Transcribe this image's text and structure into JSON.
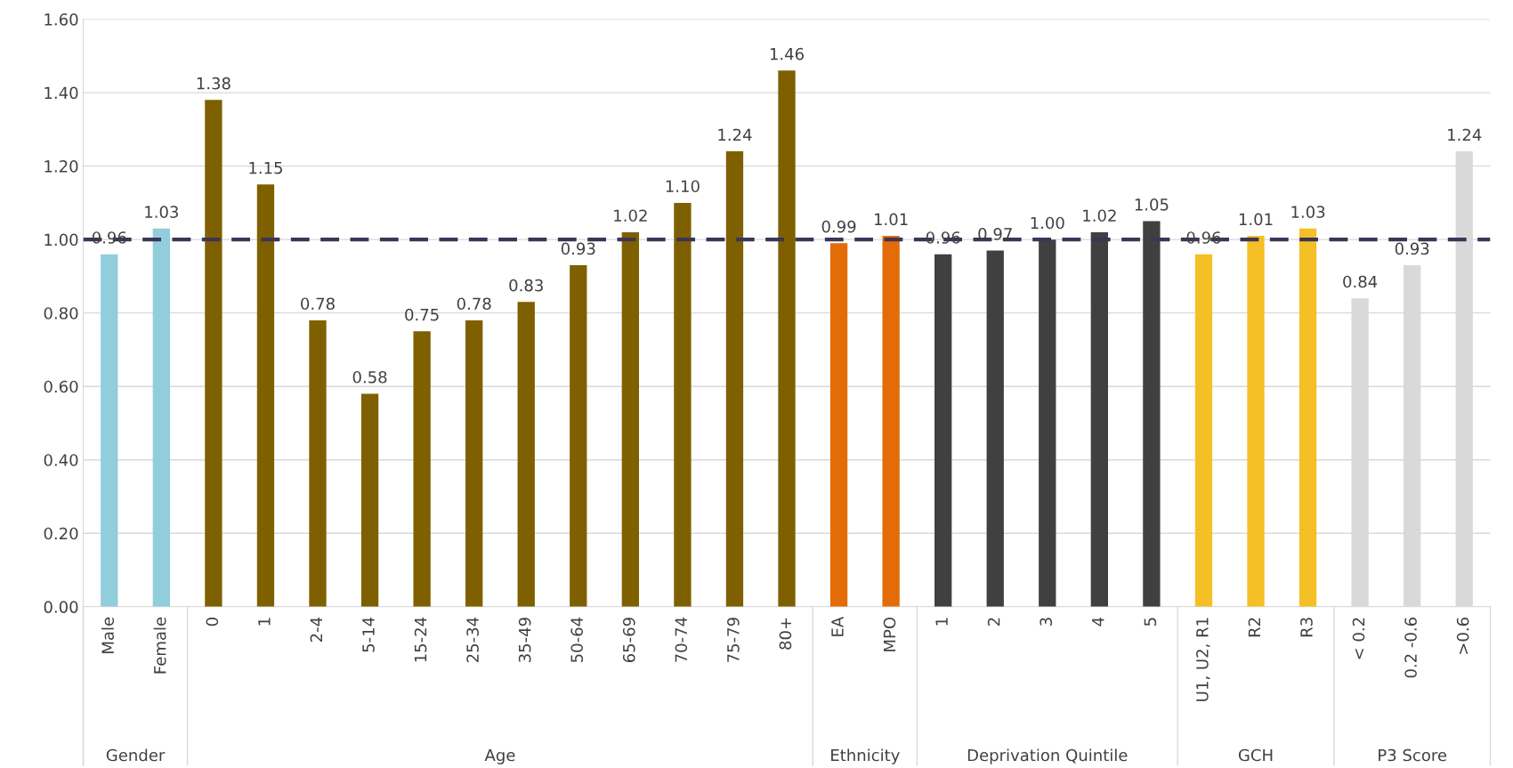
{
  "chart_data": {
    "type": "bar",
    "categories": [
      "Male",
      "Female",
      "0",
      "1",
      "2-4",
      "5-14",
      "15-24",
      "25-34",
      "35-49",
      "50-64",
      "65-69",
      "70-74",
      "75-79",
      "80+",
      "EA",
      "MPO",
      "1",
      "2",
      "3",
      "4",
      "5",
      "U1, U2, R1",
      "R2",
      "R3",
      "< 0.2",
      "0.2 -0.6",
      ">0.6"
    ],
    "values": [
      0.96,
      1.03,
      1.38,
      1.15,
      0.78,
      0.58,
      0.75,
      0.78,
      0.83,
      0.93,
      1.02,
      1.1,
      1.24,
      1.46,
      0.99,
      1.01,
      0.96,
      0.97,
      1.0,
      1.02,
      1.05,
      0.96,
      1.01,
      1.03,
      0.84,
      0.93,
      1.24
    ],
    "value_labels": [
      "0.96",
      "1.03",
      "1.38",
      "1.15",
      "0.78",
      "0.58",
      "0.75",
      "0.78",
      "0.83",
      "0.93",
      "1.02",
      "1.10",
      "1.24",
      "1.46",
      "0.99",
      "1.01",
      "0.96",
      "0.97",
      "1.00",
      "1.02",
      "1.05",
      "0.96",
      "1.01",
      "1.03",
      "0.84",
      "0.93",
      "1.24"
    ],
    "colors": [
      "#92cddc",
      "#92cddc",
      "#7f6000",
      "#7f6000",
      "#7f6000",
      "#7f6000",
      "#7f6000",
      "#7f6000",
      "#7f6000",
      "#7f6000",
      "#7f6000",
      "#7f6000",
      "#7f6000",
      "#7f6000",
      "#e36c09",
      "#e36c09",
      "#404040",
      "#404040",
      "#404040",
      "#404040",
      "#404040",
      "#f5c026",
      "#f5c026",
      "#f5c026",
      "#d9d9d9",
      "#d9d9d9",
      "#d9d9d9"
    ],
    "annotations": [
      "Gender",
      "Age",
      "Ethnicity",
      "Deprivation Quintile",
      "GCH",
      "P3 Score"
    ],
    "ylim": [
      0,
      1.6
    ],
    "yticks": [
      {
        "value": 0,
        "label": "0.00"
      },
      {
        "value": 0.2,
        "label": "0.20"
      },
      {
        "value": 0.4,
        "label": "0.40"
      },
      {
        "value": 0.6,
        "label": "0.60"
      },
      {
        "value": 0.8,
        "label": "0.80"
      },
      {
        "value": 1.0,
        "label": "1.00"
      },
      {
        "value": 1.2,
        "label": "1.20"
      },
      {
        "value": 1.4,
        "label": "1.40"
      },
      {
        "value": 1.6,
        "label": "1.60"
      }
    ],
    "ref_lines": [
      {
        "axis": "y",
        "value": 1.0,
        "color": "#3b3557",
        "line_style": "dashed"
      }
    ],
    "grid": "y",
    "legend": false
  }
}
